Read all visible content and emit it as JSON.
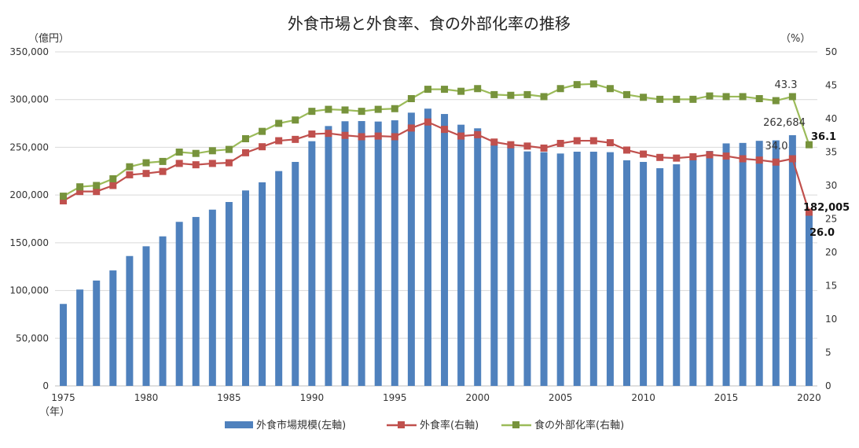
{
  "chart_data": {
    "type": "bar+line",
    "title": "外食市場と外食率、食の外部化率の推移",
    "left_axis_unit": "（億円）",
    "right_axis_unit": "（%）",
    "x_unit": "（年）",
    "ylim_left": [
      0,
      350000
    ],
    "ylim_right": [
      0,
      50
    ],
    "left_ticks": [
      "0",
      "50,000",
      "100,000",
      "150,000",
      "200,000",
      "250,000",
      "300,000",
      "350,000"
    ],
    "right_ticks": [
      "0",
      "5",
      "10",
      "15",
      "20",
      "25",
      "30",
      "35",
      "40",
      "45",
      "50"
    ],
    "x_tick_labels": [
      "1975",
      "1980",
      "1985",
      "1990",
      "1995",
      "2000",
      "2005",
      "2010",
      "2015",
      "2020"
    ],
    "grid": true,
    "legend_position": "bottom",
    "years": [
      1975,
      1976,
      1977,
      1978,
      1979,
      1980,
      1981,
      1982,
      1983,
      1984,
      1985,
      1986,
      1987,
      1988,
      1989,
      1990,
      1991,
      1992,
      1993,
      1994,
      1995,
      1996,
      1997,
      1998,
      1999,
      2000,
      2001,
      2002,
      2003,
      2004,
      2005,
      2006,
      2007,
      2008,
      2009,
      2010,
      2011,
      2012,
      2013,
      2014,
      2015,
      2016,
      2017,
      2018,
      2019,
      2020
    ],
    "series": [
      {
        "name": "外食市場規模(左軸)",
        "type": "bar",
        "axis": "left",
        "color": "#4f81bd",
        "values": [
          85900,
          101000,
          110400,
          121000,
          136100,
          146300,
          156700,
          171900,
          177000,
          184700,
          192700,
          204800,
          213300,
          225100,
          234700,
          256400,
          272300,
          277300,
          277500,
          277000,
          278300,
          286300,
          290500,
          284900,
          273700,
          269900,
          253400,
          250600,
          245700,
          244900,
          243500,
          245400,
          245400,
          244900,
          236400,
          234700,
          228100,
          232200,
          240100,
          246200,
          254100,
          254600,
          256800,
          257300,
          262684,
          182005
        ]
      },
      {
        "name": "外食率(右軸)",
        "type": "line",
        "axis": "right",
        "color": "#c0504d",
        "values": [
          27.7,
          29.1,
          29.1,
          30.0,
          31.6,
          31.8,
          32.1,
          33.3,
          33.1,
          33.3,
          33.4,
          34.9,
          35.8,
          36.7,
          36.9,
          37.7,
          37.8,
          37.5,
          37.3,
          37.4,
          37.3,
          38.6,
          39.5,
          38.4,
          37.4,
          37.6,
          36.5,
          36.1,
          35.9,
          35.6,
          36.3,
          36.7,
          36.7,
          36.4,
          35.3,
          34.7,
          34.2,
          34.1,
          34.3,
          34.6,
          34.4,
          34.0,
          33.8,
          33.5,
          34.0,
          26.0
        ]
      },
      {
        "name": "食の外部化率(右軸)",
        "type": "line",
        "axis": "right",
        "color": "#9bbb59",
        "marker_color": "#77933c",
        "values": [
          28.4,
          29.8,
          30.0,
          31.0,
          32.8,
          33.4,
          33.6,
          35.0,
          34.8,
          35.2,
          35.4,
          37.0,
          38.1,
          39.3,
          39.8,
          41.1,
          41.4,
          41.3,
          41.1,
          41.4,
          41.5,
          43.0,
          44.4,
          44.4,
          44.1,
          44.5,
          43.6,
          43.5,
          43.6,
          43.3,
          44.5,
          45.1,
          45.2,
          44.5,
          43.6,
          43.2,
          42.9,
          42.9,
          42.9,
          43.4,
          43.3,
          43.3,
          43.0,
          42.7,
          43.3,
          36.1
        ]
      }
    ],
    "annotations": {
      "bar_2019": "262,684",
      "bar_2020": "182,005",
      "rate_2019": "34.0",
      "rate_2020": "26.0",
      "ext_2019": "43.3",
      "ext_2020": "36.1"
    }
  }
}
